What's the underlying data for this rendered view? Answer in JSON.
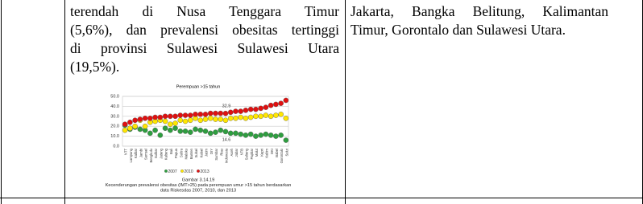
{
  "middle_text": [
    "terendah di Nusa Tenggara Timur",
    "(5,6%), dan prevalensi obesitas tertinggi",
    "di provinsi Sulawesi Sulawesi Utara",
    "(19,5%)."
  ],
  "right_text": [
    "Jakarta, Bangka Belitung, Kalimantan",
    "Timur, Gorontalo dan Sulawesi Utara."
  ],
  "chart_data": {
    "type": "scatter",
    "title": "Perempuan >15 tahun",
    "categories": [
      "NTT",
      "Lampung",
      "Kalbar",
      "Jambi",
      "Sumsel",
      "Bengkulu",
      "Sulbar",
      "Jateng",
      "Kalteng",
      "Bali",
      "Papua",
      "Sultra",
      "Maluku",
      "Banten",
      "Sulsel",
      "Kalsel",
      "Jatim",
      "DIY",
      "Sumbar",
      "Riau",
      "Indonesia",
      "Aceh",
      "Jabar",
      "NTB",
      "Sulteng",
      "Papbar",
      "Malut",
      "Kepri",
      "Kaltim",
      "DKI",
      "Babel",
      "Gorontalo",
      "Sulut"
    ],
    "series": [
      {
        "name": "2007",
        "color": "#2e9e3f",
        "values": [
          21,
          17,
          19,
          17,
          16,
          13,
          16,
          11,
          18,
          16,
          18,
          15,
          15,
          14,
          17,
          16,
          15,
          13,
          14,
          16,
          14.6,
          13,
          13,
          12,
          11,
          12,
          10,
          11,
          12,
          11,
          10,
          11,
          6
        ],
        "value_labels": [
          null,
          null,
          null,
          null,
          null,
          null,
          null,
          null,
          null,
          null,
          null,
          null,
          null,
          null,
          null,
          null,
          null,
          null,
          null,
          null,
          "14.6",
          null,
          null,
          null,
          null,
          null,
          null,
          null,
          null,
          null,
          null,
          null,
          null
        ]
      },
      {
        "name": "2010",
        "color": "#ffe600",
        "values": [
          16,
          18,
          20,
          26,
          20,
          24,
          25,
          26,
          25,
          22,
          23,
          26,
          25,
          26,
          28,
          26,
          27,
          28,
          27,
          27,
          26,
          28,
          28,
          29,
          28,
          29,
          30,
          30,
          31,
          30,
          31,
          32,
          28
        ]
      },
      {
        "name": "2013",
        "color": "#e01010",
        "values": [
          22,
          24,
          26,
          27,
          28,
          28,
          29,
          29,
          30,
          30,
          30,
          31,
          31,
          31,
          32,
          32,
          32,
          33,
          33,
          33,
          32.9,
          34,
          35,
          35,
          36,
          37,
          37,
          38,
          39,
          41,
          42,
          43,
          46
        ],
        "value_labels": [
          null,
          null,
          null,
          null,
          null,
          null,
          null,
          null,
          null,
          null,
          null,
          null,
          null,
          null,
          null,
          null,
          null,
          null,
          null,
          null,
          "32.9",
          null,
          null,
          null,
          null,
          null,
          null,
          null,
          null,
          null,
          null,
          null,
          null
        ]
      }
    ],
    "ylim": [
      0,
      50
    ],
    "yticks": [
      {
        "value": 0,
        "label": "0.0"
      },
      {
        "value": 10,
        "label": "10.0"
      },
      {
        "value": 20,
        "label": "20.0"
      },
      {
        "value": 30,
        "label": "30.0"
      },
      {
        "value": 40,
        "label": "40.0"
      },
      {
        "value": 50,
        "label": "50.0"
      }
    ],
    "grid": true,
    "caption": [
      "Gambar 3.14.19",
      "Kecenderungan prevalensi obesitas (IMT>25) pada perempuan umur >15 tahun berdasarkan",
      "data Riskesdas 2007, 2010, dan 2013"
    ]
  }
}
